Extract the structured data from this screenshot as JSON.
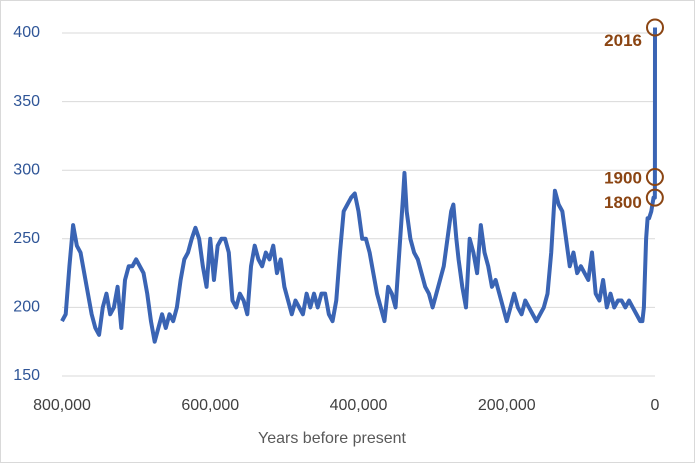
{
  "chart_data": {
    "type": "line",
    "x_label": "Years before present",
    "x": [
      800000,
      795000,
      790000,
      785000,
      780000,
      775000,
      770000,
      765000,
      760000,
      755000,
      750000,
      745000,
      740000,
      735000,
      730000,
      725000,
      720000,
      715000,
      710000,
      705000,
      700000,
      695000,
      690000,
      685000,
      680000,
      675000,
      670000,
      665000,
      660000,
      655000,
      650000,
      645000,
      640000,
      635000,
      630000,
      625000,
      620000,
      615000,
      610000,
      605000,
      600000,
      595000,
      590000,
      585000,
      580000,
      575000,
      570000,
      565000,
      560000,
      555000,
      550000,
      545000,
      540000,
      535000,
      530000,
      525000,
      520000,
      515000,
      510000,
      505000,
      500000,
      495000,
      490000,
      485000,
      480000,
      475000,
      470000,
      465000,
      460000,
      455000,
      450000,
      445000,
      440000,
      435000,
      430000,
      425000,
      420000,
      415000,
      410000,
      405000,
      400000,
      395000,
      390000,
      385000,
      380000,
      375000,
      370000,
      365000,
      360000,
      355000,
      350000,
      345000,
      340000,
      338000,
      335000,
      330000,
      325000,
      320000,
      315000,
      310000,
      305000,
      300000,
      295000,
      290000,
      285000,
      280000,
      275000,
      272000,
      268000,
      265000,
      260000,
      255000,
      250000,
      245000,
      240000,
      235000,
      230000,
      225000,
      220000,
      215000,
      210000,
      205000,
      200000,
      195000,
      190000,
      185000,
      180000,
      175000,
      170000,
      165000,
      160000,
      155000,
      150000,
      145000,
      140000,
      135000,
      130000,
      125000,
      120000,
      115000,
      110000,
      105000,
      100000,
      95000,
      90000,
      85000,
      80000,
      75000,
      70000,
      65000,
      60000,
      55000,
      50000,
      45000,
      40000,
      35000,
      30000,
      25000,
      20000,
      17000,
      15000,
      12000,
      10000,
      8000,
      5000,
      2000,
      216,
      116,
      0
    ],
    "series": [
      {
        "color": "#3a64b4",
        "values": [
          190,
          195,
          230,
          260,
          245,
          240,
          225,
          210,
          195,
          185,
          180,
          200,
          210,
          195,
          200,
          215,
          185,
          220,
          230,
          230,
          235,
          230,
          225,
          210,
          190,
          175,
          185,
          195,
          185,
          195,
          190,
          200,
          220,
          235,
          240,
          250,
          258,
          250,
          230,
          215,
          250,
          220,
          245,
          250,
          250,
          240,
          205,
          200,
          210,
          205,
          195,
          230,
          245,
          235,
          230,
          240,
          235,
          245,
          225,
          235,
          215,
          205,
          195,
          205,
          200,
          195,
          210,
          200,
          210,
          200,
          210,
          210,
          195,
          190,
          205,
          240,
          270,
          275,
          280,
          283,
          270,
          250,
          250,
          240,
          225,
          210,
          200,
          190,
          215,
          210,
          200,
          240,
          280,
          298,
          270,
          250,
          240,
          235,
          225,
          215,
          210,
          200,
          210,
          220,
          230,
          250,
          270,
          275,
          250,
          235,
          215,
          200,
          250,
          240,
          225,
          260,
          240,
          230,
          215,
          220,
          210,
          200,
          190,
          200,
          210,
          200,
          195,
          205,
          200,
          195,
          190,
          195,
          200,
          210,
          240,
          285,
          275,
          270,
          250,
          230,
          240,
          225,
          230,
          225,
          220,
          240,
          210,
          205,
          220,
          200,
          210,
          200,
          205,
          205,
          200,
          205,
          200,
          195,
          190,
          190,
          200,
          250,
          265,
          265,
          270,
          280,
          280,
          295,
          404
        ]
      }
    ],
    "xlim": [
      800000,
      0
    ],
    "xticks": [
      {
        "value": 800000,
        "label": "800,000"
      },
      {
        "value": 600000,
        "label": "600,000"
      },
      {
        "value": 400000,
        "label": "400,000"
      },
      {
        "value": 200000,
        "label": "200,000"
      },
      0
    ],
    "ylim": [
      150,
      400
    ],
    "yticks": [
      150,
      200,
      250,
      300,
      350,
      400
    ],
    "grid": true,
    "annotations": [
      {
        "label": "2016",
        "x": 0,
        "y": 404
      },
      {
        "label": "1900",
        "x": 116,
        "y": 295
      },
      {
        "label": "1800",
        "x": 216,
        "y": 280
      }
    ],
    "annotation_color": "#8b4513"
  }
}
